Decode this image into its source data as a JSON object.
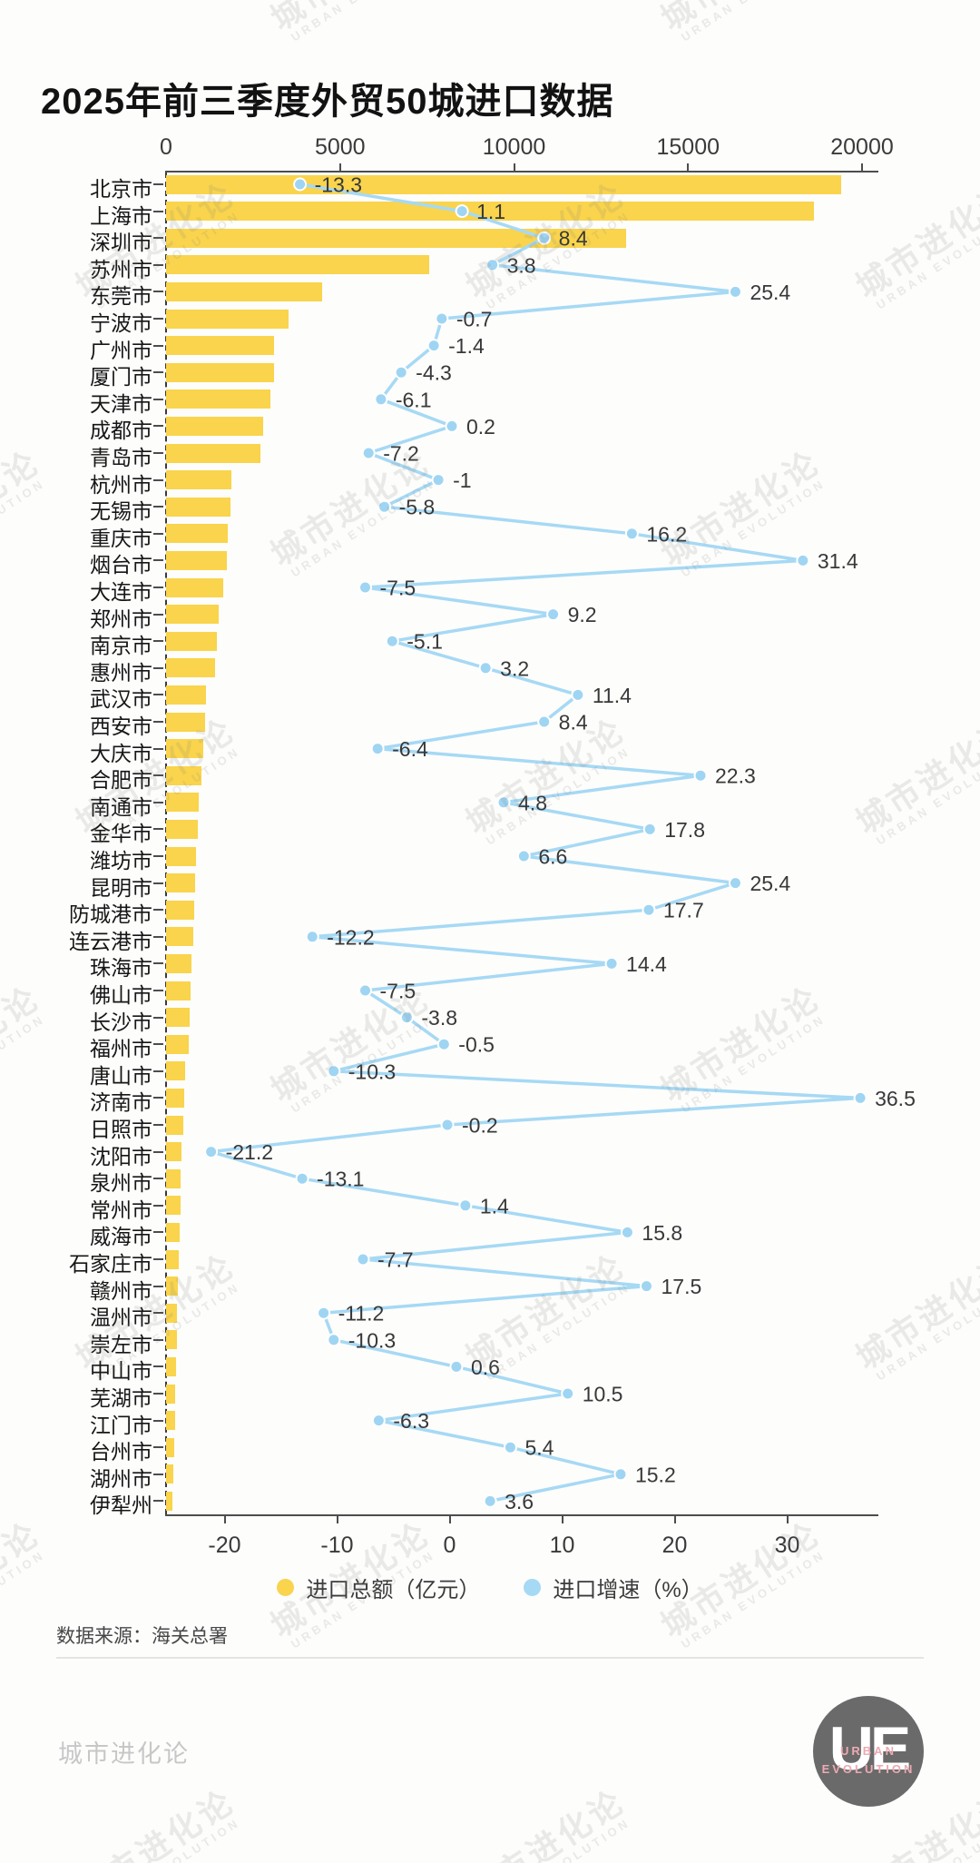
{
  "title": "2025年前三季度外贸50城进口数据",
  "source_note": "数据来源：海关总署",
  "watermark": {
    "line1": "城市进化论",
    "line2": "URBAN EVOLUTION"
  },
  "footer": {
    "brand": "城市进化论",
    "logo": {
      "letters": "UE",
      "sub_line1": "URBAN",
      "sub_line2": "EVOLUTION"
    }
  },
  "colors": {
    "bar_yellow": "#F9D44C",
    "line_blue": "#A6D9F4",
    "dot_blue": "#9FD5F2",
    "axis": "#4d4d4d",
    "value_text": "#383838",
    "logo_pink": "#EDA9B3"
  },
  "legend": [
    {
      "label": "进口总额（亿元）",
      "color": "#F9D44C"
    },
    {
      "label": "进口增速（%）",
      "color": "#A6D9F4"
    }
  ],
  "chart_data": {
    "type": "bar",
    "orientation": "horizontal",
    "title": "2025年前三季度外贸50城进口数据",
    "categories": [
      "北京市",
      "上海市",
      "深圳市",
      "苏州市",
      "东莞市",
      "宁波市",
      "广州市",
      "厦门市",
      "天津市",
      "成都市",
      "青岛市",
      "杭州市",
      "无锡市",
      "重庆市",
      "烟台市",
      "大连市",
      "郑州市",
      "南京市",
      "惠州市",
      "武汉市",
      "西安市",
      "大庆市",
      "合肥市",
      "南通市",
      "金华市",
      "潍坊市",
      "昆明市",
      "防城港市",
      "连云港市",
      "珠海市",
      "佛山市",
      "长沙市",
      "福州市",
      "唐山市",
      "济南市",
      "日照市",
      "沈阳市",
      "泉州市",
      "常州市",
      "威海市",
      "石家庄市",
      "赣州市",
      "温州市",
      "崇左市",
      "中山市",
      "芜湖市",
      "江门市",
      "台州市",
      "湖州市",
      "伊犁州"
    ],
    "series": [
      {
        "name": "进口总额（亿元）",
        "type": "bar",
        "axis": "top",
        "values_estimated_from_pixels": true,
        "values": [
          19400,
          18620,
          13230,
          7550,
          4480,
          3530,
          3110,
          3090,
          2990,
          2780,
          2710,
          1890,
          1840,
          1780,
          1760,
          1640,
          1510,
          1460,
          1410,
          1150,
          1110,
          1080,
          1020,
          950,
          900,
          870,
          830,
          800,
          780,
          740,
          700,
          670,
          660,
          560,
          520,
          490,
          450,
          430,
          410,
          380,
          360,
          340,
          320,
          300,
          280,
          260,
          250,
          230,
          210,
          170
        ]
      },
      {
        "name": "进口增速（%）",
        "type": "line",
        "axis": "bottom",
        "values": [
          -13.3,
          1.1,
          8.4,
          3.8,
          25.4,
          -0.7,
          -1.4,
          -4.3,
          -6.1,
          0.2,
          -7.2,
          -1,
          -5.8,
          16.2,
          31.4,
          -7.5,
          9.2,
          -5.1,
          3.2,
          11.4,
          8.4,
          -6.4,
          22.3,
          4.8,
          17.8,
          6.6,
          25.4,
          17.7,
          -12.2,
          14.4,
          -7.5,
          -3.8,
          -0.5,
          -10.3,
          36.5,
          -0.2,
          -21.2,
          -13.1,
          1.4,
          15.8,
          -7.7,
          17.5,
          -11.2,
          -10.3,
          0.6,
          10.5,
          -6.3,
          5.4,
          15.2,
          3.6
        ]
      }
    ],
    "top_axis": {
      "ticks": [
        0,
        5000,
        10000,
        15000,
        20000
      ],
      "range": [
        0,
        20000
      ]
    },
    "bottom_axis": {
      "ticks": [
        -20,
        -10,
        0,
        10,
        20,
        30
      ],
      "range": [
        -25,
        38
      ]
    },
    "grid": false,
    "legend_position": "bottom"
  }
}
